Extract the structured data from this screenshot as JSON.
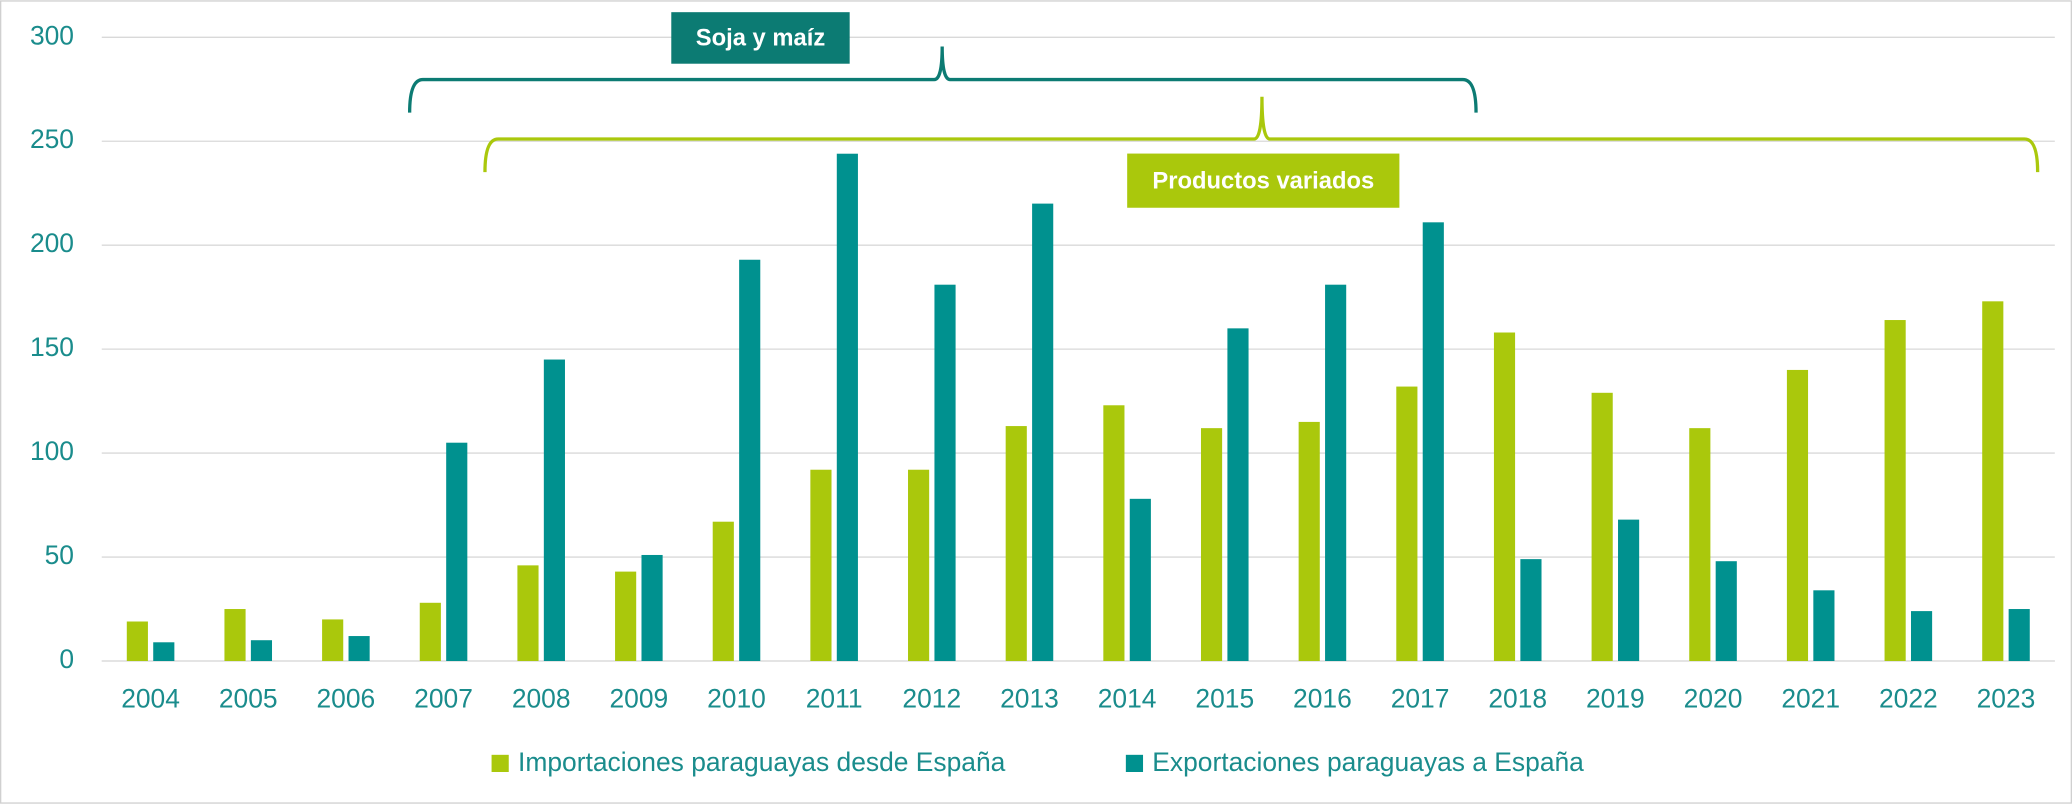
{
  "chart_data": {
    "type": "bar",
    "categories": [
      "2004",
      "2005",
      "2006",
      "2007",
      "2008",
      "2009",
      "2010",
      "2011",
      "2012",
      "2013",
      "2014",
      "2015",
      "2016",
      "2017",
      "2018",
      "2019",
      "2020",
      "2021",
      "2022",
      "2023"
    ],
    "series": [
      {
        "name": "Importaciones paraguayas desde España",
        "color": "#aac80c",
        "values": [
          19,
          25,
          20,
          28,
          46,
          43,
          67,
          92,
          92,
          113,
          123,
          112,
          115,
          132,
          158,
          129,
          112,
          140,
          164,
          173
        ]
      },
      {
        "name": "Exportaciones paraguayas a España",
        "color": "#00918f",
        "values": [
          9,
          10,
          12,
          105,
          145,
          51,
          193,
          244,
          181,
          220,
          78,
          160,
          181,
          211,
          49,
          68,
          48,
          34,
          24,
          25
        ]
      }
    ],
    "ylim": [
      0,
      300
    ],
    "yticks": [
      0,
      50,
      100,
      150,
      200,
      250,
      300
    ],
    "grid": true,
    "legend": "bottom",
    "annotations": [
      {
        "text": "Soja y maíz",
        "color": "#0c7b73"
      },
      {
        "text": "Productos variados",
        "color": "#aac80c"
      }
    ]
  }
}
